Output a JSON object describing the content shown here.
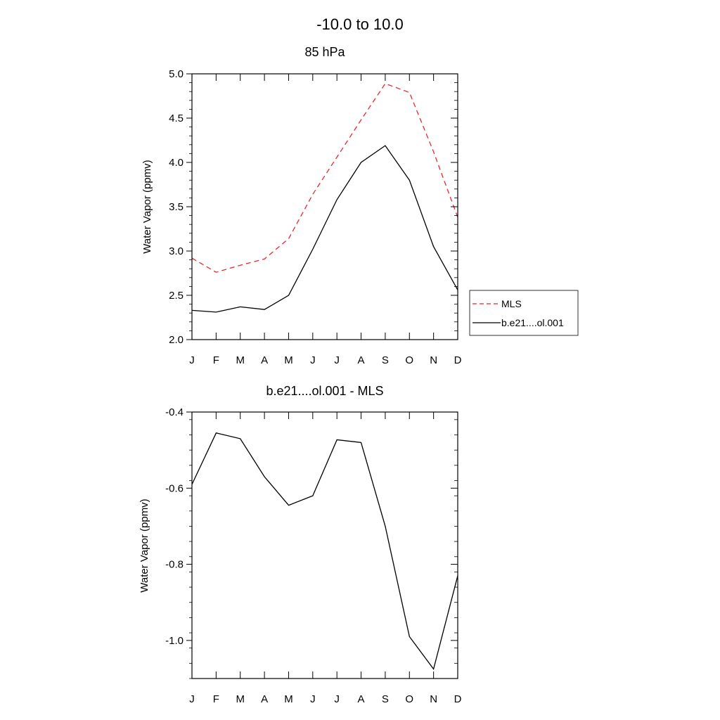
{
  "figure": {
    "title": "-10.0 to  10.0"
  },
  "chart_data": [
    {
      "type": "line",
      "title": "85 hPa",
      "xlabel": "",
      "ylabel": "Water Vapor (ppmv)",
      "categories": [
        "J",
        "F",
        "M",
        "A",
        "M",
        "J",
        "J",
        "A",
        "S",
        "O",
        "N",
        "D"
      ],
      "ylim": [
        2.0,
        5.0
      ],
      "yticks": [
        2.0,
        2.5,
        3.0,
        3.5,
        4.0,
        4.5,
        5.0
      ],
      "ytick_labels": [
        "2.0",
        "2.5",
        "3.0",
        "3.5",
        "4.0",
        "4.5",
        "5.0"
      ],
      "legend": "right",
      "series": [
        {
          "name": "MLS",
          "color": "#e8282c",
          "dashed": true,
          "values": [
            2.92,
            2.76,
            2.84,
            2.91,
            3.14,
            3.64,
            4.06,
            4.48,
            4.89,
            4.79,
            4.12,
            3.38
          ]
        },
        {
          "name": "b.e21....ol.001",
          "color": "#000000",
          "dashed": false,
          "values": [
            2.33,
            2.31,
            2.37,
            2.34,
            2.5,
            3.02,
            3.58,
            4.0,
            4.19,
            3.8,
            3.05,
            2.56
          ]
        }
      ]
    },
    {
      "type": "line",
      "title": "b.e21....ol.001 - MLS",
      "xlabel": "",
      "ylabel": "Water Vapor (ppmv)",
      "categories": [
        "J",
        "F",
        "M",
        "A",
        "M",
        "J",
        "J",
        "A",
        "S",
        "O",
        "N",
        "D"
      ],
      "ylim": [
        -1.1,
        -0.4
      ],
      "yticks": [
        -1.0,
        -0.8,
        -0.6,
        -0.4
      ],
      "ytick_labels": [
        "-1.0",
        "-0.8",
        "-0.6",
        "-0.4"
      ],
      "series": [
        {
          "color": "#000000",
          "dashed": false,
          "values": [
            -0.59,
            -0.455,
            -0.47,
            -0.57,
            -0.645,
            -0.62,
            -0.473,
            -0.48,
            -0.7,
            -0.99,
            -1.075,
            -0.83
          ]
        }
      ]
    }
  ]
}
